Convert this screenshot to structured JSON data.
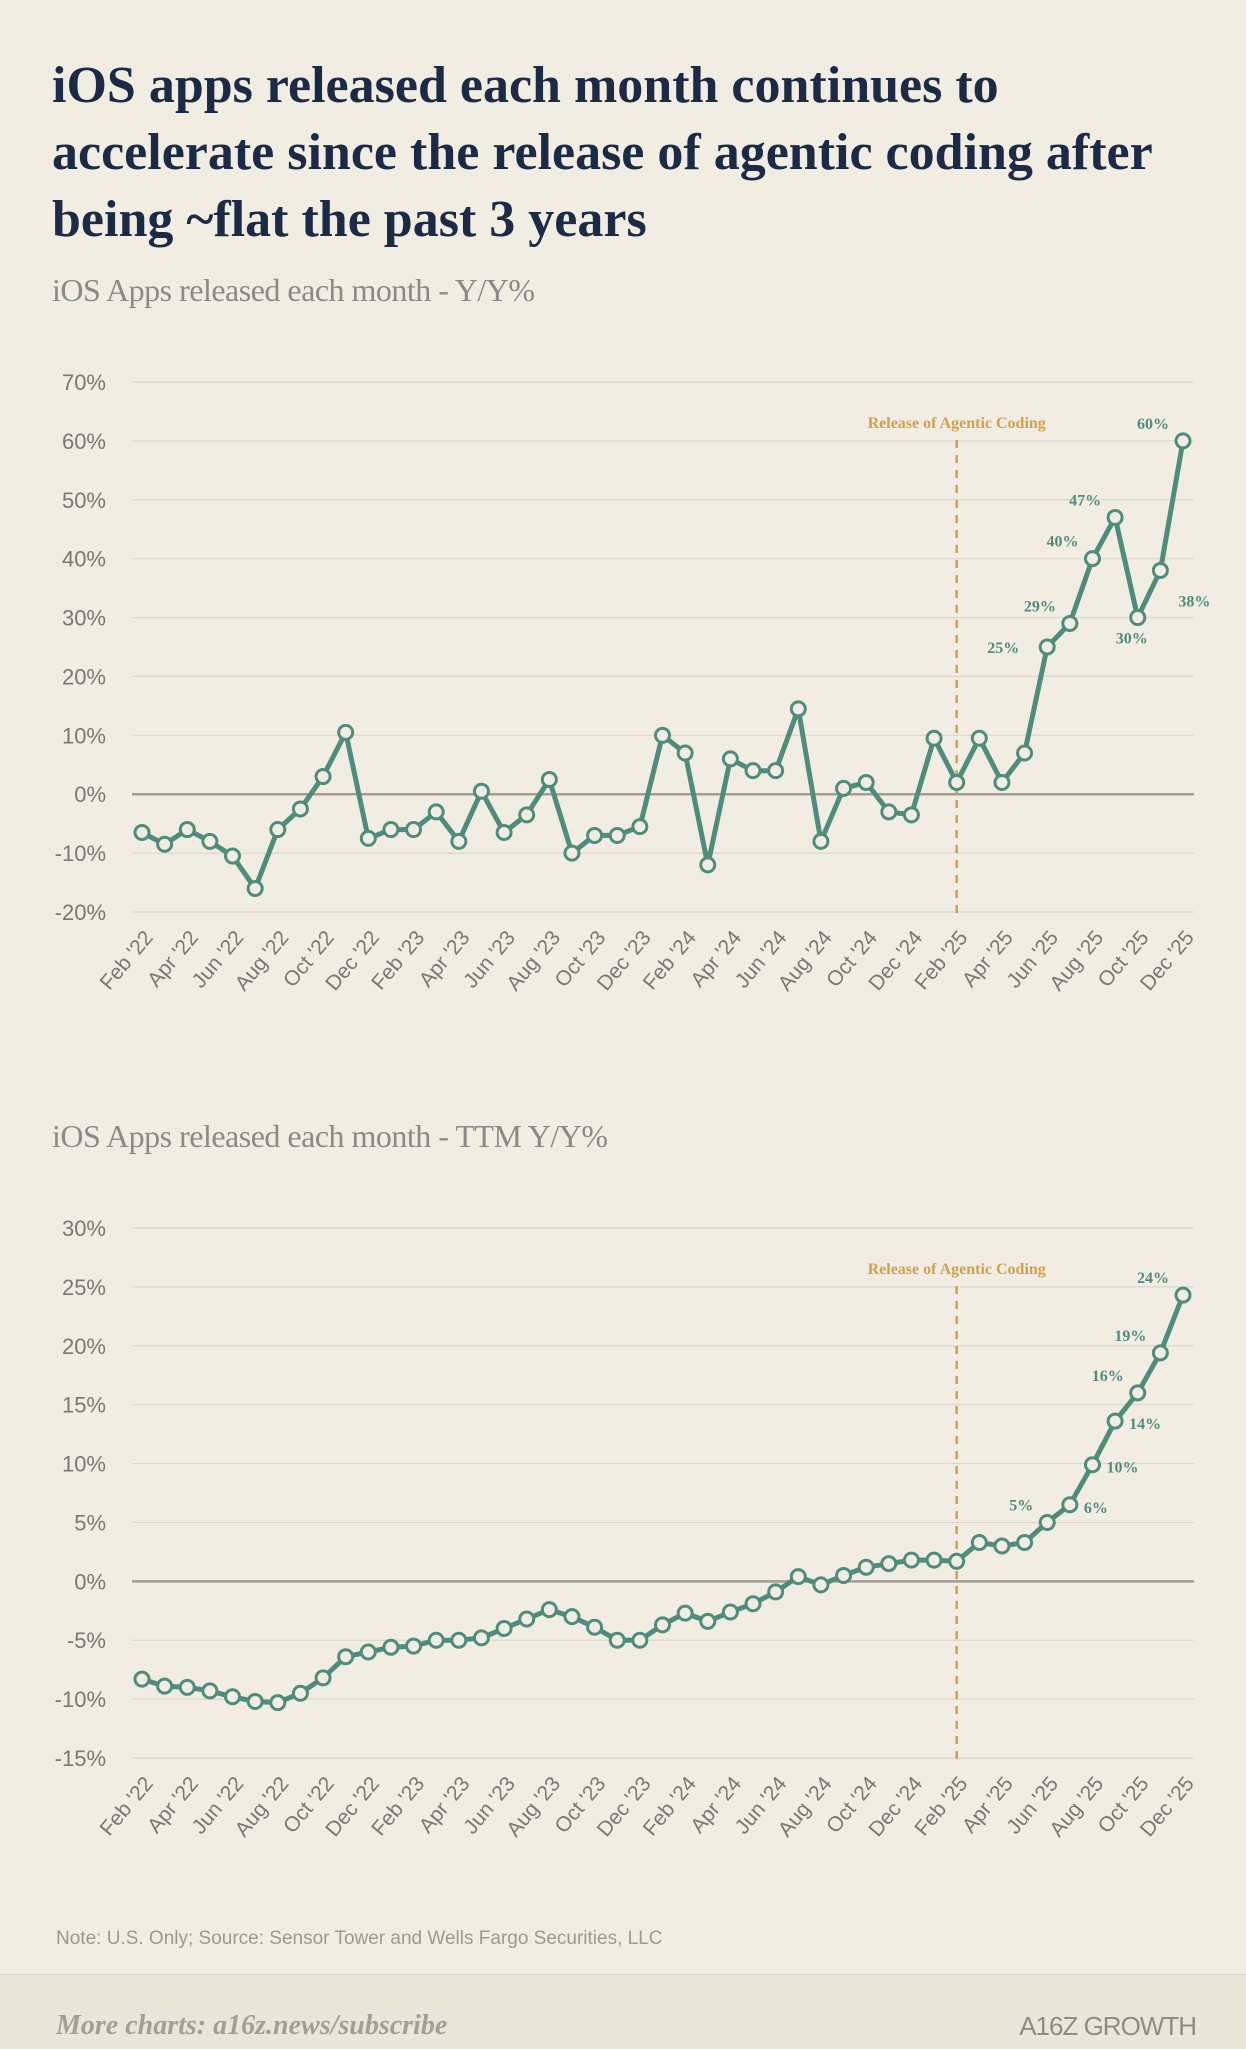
{
  "headline": "iOS apps released each month continues to accelerate since the release of agentic coding after being ~flat the past 3 years",
  "note": "Note: U.S. Only; Source: Sensor Tower and Wells Fargo Securities, LLC",
  "footer": {
    "more": "More charts: a16z.news/subscribe",
    "brand": "A16Z GROWTH"
  },
  "colors": {
    "line": "#4f8c7c",
    "marker_fill": "#f1ede3",
    "annotation": "#d0a04a",
    "grid": "#dcd7cb",
    "zero_line": "#a39d92",
    "axis_text": "#7a7875",
    "background": "#f1ede3"
  },
  "chart_data": [
    {
      "type": "line",
      "title": "iOS Apps released each month - Y/Y%",
      "x": [
        "Feb '22",
        "Mar '22",
        "Apr '22",
        "May '22",
        "Jun '22",
        "Jul '22",
        "Aug '22",
        "Sep '22",
        "Oct '22",
        "Nov '22",
        "Dec '22",
        "Jan '23",
        "Feb '23",
        "Mar '23",
        "Apr '23",
        "May '23",
        "Jun '23",
        "Jul '23",
        "Aug '23",
        "Sep '23",
        "Oct '23",
        "Nov '23",
        "Dec '23",
        "Jan '24",
        "Feb '24",
        "Mar '24",
        "Apr '24",
        "May '24",
        "Jun '24",
        "Jul '24",
        "Aug '24",
        "Sep '24",
        "Oct '24",
        "Nov '24",
        "Dec '24",
        "Jan '25",
        "Feb '25",
        "Mar '25",
        "Apr '25",
        "May '25",
        "Jun '25",
        "Jul '25",
        "Aug '25",
        "Sep '25",
        "Oct '25",
        "Nov '25",
        "Dec '25"
      ],
      "tick_labels": [
        "Feb '22",
        "Apr '22",
        "Jun '22",
        "Aug '22",
        "Oct '22",
        "Dec '22",
        "Feb '23",
        "Apr '23",
        "Jun '23",
        "Aug '23",
        "Oct '23",
        "Dec '23",
        "Feb '24",
        "Apr '24",
        "Jun '24",
        "Aug '24",
        "Oct '24",
        "Dec '24",
        "Feb '25",
        "Apr '25",
        "Jun '25",
        "Aug '25",
        "Oct '25",
        "Dec '25"
      ],
      "series": [
        {
          "values": [
            -6.5,
            -8.5,
            -6,
            -8,
            -10.5,
            -16,
            -6,
            -2.5,
            3,
            10.5,
            -7.5,
            -6,
            -6,
            -3,
            -8,
            0.5,
            -6.5,
            -3.5,
            2.5,
            -10,
            -7,
            -7,
            -5.5,
            10,
            7,
            -12,
            6,
            4,
            4,
            14.5,
            -8,
            1,
            2,
            -3,
            -3.5,
            9.5,
            2,
            9.5,
            2,
            7,
            25,
            29,
            40,
            47,
            30,
            38,
            60
          ]
        }
      ],
      "labels": [
        {
          "text": "25%",
          "index": 40,
          "pos": "left"
        },
        {
          "text": "29%",
          "index": 41,
          "pos": "upleft"
        },
        {
          "text": "40%",
          "index": 42,
          "pos": "upleft"
        },
        {
          "text": "47%",
          "index": 43,
          "pos": "upleft"
        },
        {
          "text": "30%",
          "index": 44,
          "pos": "down"
        },
        {
          "text": "38%",
          "index": 45,
          "pos": "downright"
        },
        {
          "text": "60%",
          "index": 46,
          "pos": "upleft"
        }
      ],
      "ylim": [
        -20,
        70
      ],
      "yticks": [
        -20,
        -10,
        0,
        10,
        20,
        30,
        40,
        50,
        60,
        70
      ],
      "ytick_labels": [
        "-20%",
        "-10%",
        "0%",
        "10%",
        "20%",
        "30%",
        "40%",
        "50%",
        "60%",
        "70%"
      ],
      "annotation": {
        "text": "Release of Agentic Coding",
        "x": "Feb '25"
      },
      "grid": true
    },
    {
      "type": "line",
      "title": "iOS Apps released each month - TTM Y/Y%",
      "x": [
        "Feb '22",
        "Mar '22",
        "Apr '22",
        "May '22",
        "Jun '22",
        "Jul '22",
        "Aug '22",
        "Sep '22",
        "Oct '22",
        "Nov '22",
        "Dec '22",
        "Jan '23",
        "Feb '23",
        "Mar '23",
        "Apr '23",
        "May '23",
        "Jun '23",
        "Jul '23",
        "Aug '23",
        "Sep '23",
        "Oct '23",
        "Nov '23",
        "Dec '23",
        "Jan '24",
        "Feb '24",
        "Mar '24",
        "Apr '24",
        "May '24",
        "Jun '24",
        "Jul '24",
        "Aug '24",
        "Sep '24",
        "Oct '24",
        "Nov '24",
        "Dec '24",
        "Jan '25",
        "Feb '25",
        "Mar '25",
        "Apr '25",
        "May '25",
        "Jun '25",
        "Jul '25",
        "Aug '25",
        "Sep '25",
        "Oct '25",
        "Nov '25",
        "Dec '25"
      ],
      "tick_labels": [
        "Feb '22",
        "Apr '22",
        "Jun '22",
        "Aug '22",
        "Oct '22",
        "Dec '22",
        "Feb '23",
        "Apr '23",
        "Jun '23",
        "Aug '23",
        "Oct '23",
        "Dec '23",
        "Feb '24",
        "Apr '24",
        "Jun '24",
        "Aug '24",
        "Oct '24",
        "Dec '24",
        "Feb '25",
        "Apr '25",
        "Jun '25",
        "Aug '25",
        "Oct '25",
        "Dec '25"
      ],
      "series": [
        {
          "values": [
            -8.3,
            -8.9,
            -9,
            -9.3,
            -9.8,
            -10.2,
            -10.3,
            -9.5,
            -8.2,
            -6.4,
            -6,
            -5.6,
            -5.5,
            -5,
            -5,
            -4.8,
            -4,
            -3.2,
            -2.4,
            -3,
            -3.9,
            -5,
            -5,
            -3.7,
            -2.7,
            -3.4,
            -2.6,
            -1.9,
            -0.9,
            0.4,
            -0.3,
            0.5,
            1.2,
            1.5,
            1.8,
            1.8,
            1.7,
            3.3,
            3,
            3.3,
            5,
            6.5,
            9.9,
            13.6,
            16,
            19.4,
            24.3
          ]
        }
      ],
      "labels": [
        {
          "text": "5%",
          "index": 40,
          "pos": "upleft"
        },
        {
          "text": "6%",
          "index": 41,
          "pos": "right"
        },
        {
          "text": "10%",
          "index": 42,
          "pos": "right"
        },
        {
          "text": "14%",
          "index": 43,
          "pos": "right"
        },
        {
          "text": "16%",
          "index": 44,
          "pos": "upleft"
        },
        {
          "text": "19%",
          "index": 45,
          "pos": "upleft"
        },
        {
          "text": "24%",
          "index": 46,
          "pos": "upleft"
        }
      ],
      "ylim": [
        -15,
        30
      ],
      "yticks": [
        -15,
        -10,
        -5,
        0,
        5,
        10,
        15,
        20,
        25,
        30
      ],
      "ytick_labels": [
        "-15%",
        "-10%",
        "-5%",
        "0%",
        "5%",
        "10%",
        "15%",
        "20%",
        "25%",
        "30%"
      ],
      "annotation": {
        "text": "Release of Agentic Coding",
        "x": "Feb '25"
      },
      "grid": true
    }
  ]
}
